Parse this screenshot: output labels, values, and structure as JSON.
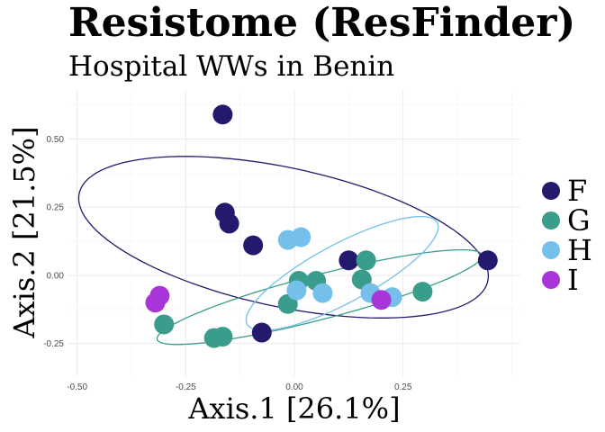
{
  "chart_data": {
    "type": "scatter",
    "title": "Resistome (ResFinder)",
    "subtitle": "Hospital WWs in Benin",
    "xlabel": "Axis.1   [26.1%]",
    "ylabel": "Axis.2   [21.5%]",
    "xlim": [
      -0.52,
      0.52
    ],
    "ylim": [
      -0.37,
      0.68
    ],
    "x_ticks": [
      -0.5,
      -0.25,
      0.0,
      0.25
    ],
    "x_tick_labels": [
      "-0.50",
      "-0.25",
      "0.00",
      "0.25"
    ],
    "y_ticks": [
      -0.25,
      0.0,
      0.25,
      0.5
    ],
    "y_tick_labels": [
      "-0.25",
      "0.00",
      "0.25",
      "0.50"
    ],
    "grid": true,
    "legend_position": "right",
    "series": [
      {
        "name": "F",
        "color": "#231a6e",
        "points": [
          {
            "x": -0.165,
            "y": 0.59
          },
          {
            "x": -0.16,
            "y": 0.23
          },
          {
            "x": -0.15,
            "y": 0.19
          },
          {
            "x": -0.095,
            "y": 0.11
          },
          {
            "x": 0.125,
            "y": 0.055
          },
          {
            "x": 0.445,
            "y": 0.055
          },
          {
            "x": -0.075,
            "y": -0.21
          }
        ],
        "ellipse": {
          "cx": -0.025,
          "cy": 0.14,
          "rx": 0.5,
          "ry": 0.245,
          "angle_deg": -22.5
        }
      },
      {
        "name": "G",
        "color": "#3a9c8a",
        "points": [
          {
            "x": 0.01,
            "y": -0.02
          },
          {
            "x": 0.05,
            "y": -0.02
          },
          {
            "x": 0.165,
            "y": 0.055
          },
          {
            "x": 0.155,
            "y": -0.015
          },
          {
            "x": 0.295,
            "y": -0.06
          },
          {
            "x": -0.015,
            "y": -0.105
          },
          {
            "x": -0.3,
            "y": -0.18
          },
          {
            "x": -0.185,
            "y": -0.23
          },
          {
            "x": -0.165,
            "y": -0.225
          }
        ],
        "ellipse": {
          "cx": 0.058,
          "cy": -0.08,
          "rx": 0.405,
          "ry": 0.078,
          "angle_deg": 23
        }
      },
      {
        "name": "H",
        "color": "#75c0ea",
        "points": [
          {
            "x": -0.015,
            "y": 0.13
          },
          {
            "x": 0.015,
            "y": 0.14
          },
          {
            "x": 0.005,
            "y": -0.055
          },
          {
            "x": 0.065,
            "y": -0.065
          },
          {
            "x": 0.175,
            "y": -0.065
          },
          {
            "x": 0.225,
            "y": -0.08
          }
        ],
        "ellipse": {
          "cx": 0.11,
          "cy": 0.007,
          "rx": 0.29,
          "ry": 0.092,
          "angle_deg": 43
        }
      },
      {
        "name": "I",
        "color": "#a835d8",
        "points": [
          {
            "x": -0.31,
            "y": -0.075
          },
          {
            "x": -0.32,
            "y": -0.1
          },
          {
            "x": 0.2,
            "y": -0.09
          }
        ]
      }
    ]
  }
}
